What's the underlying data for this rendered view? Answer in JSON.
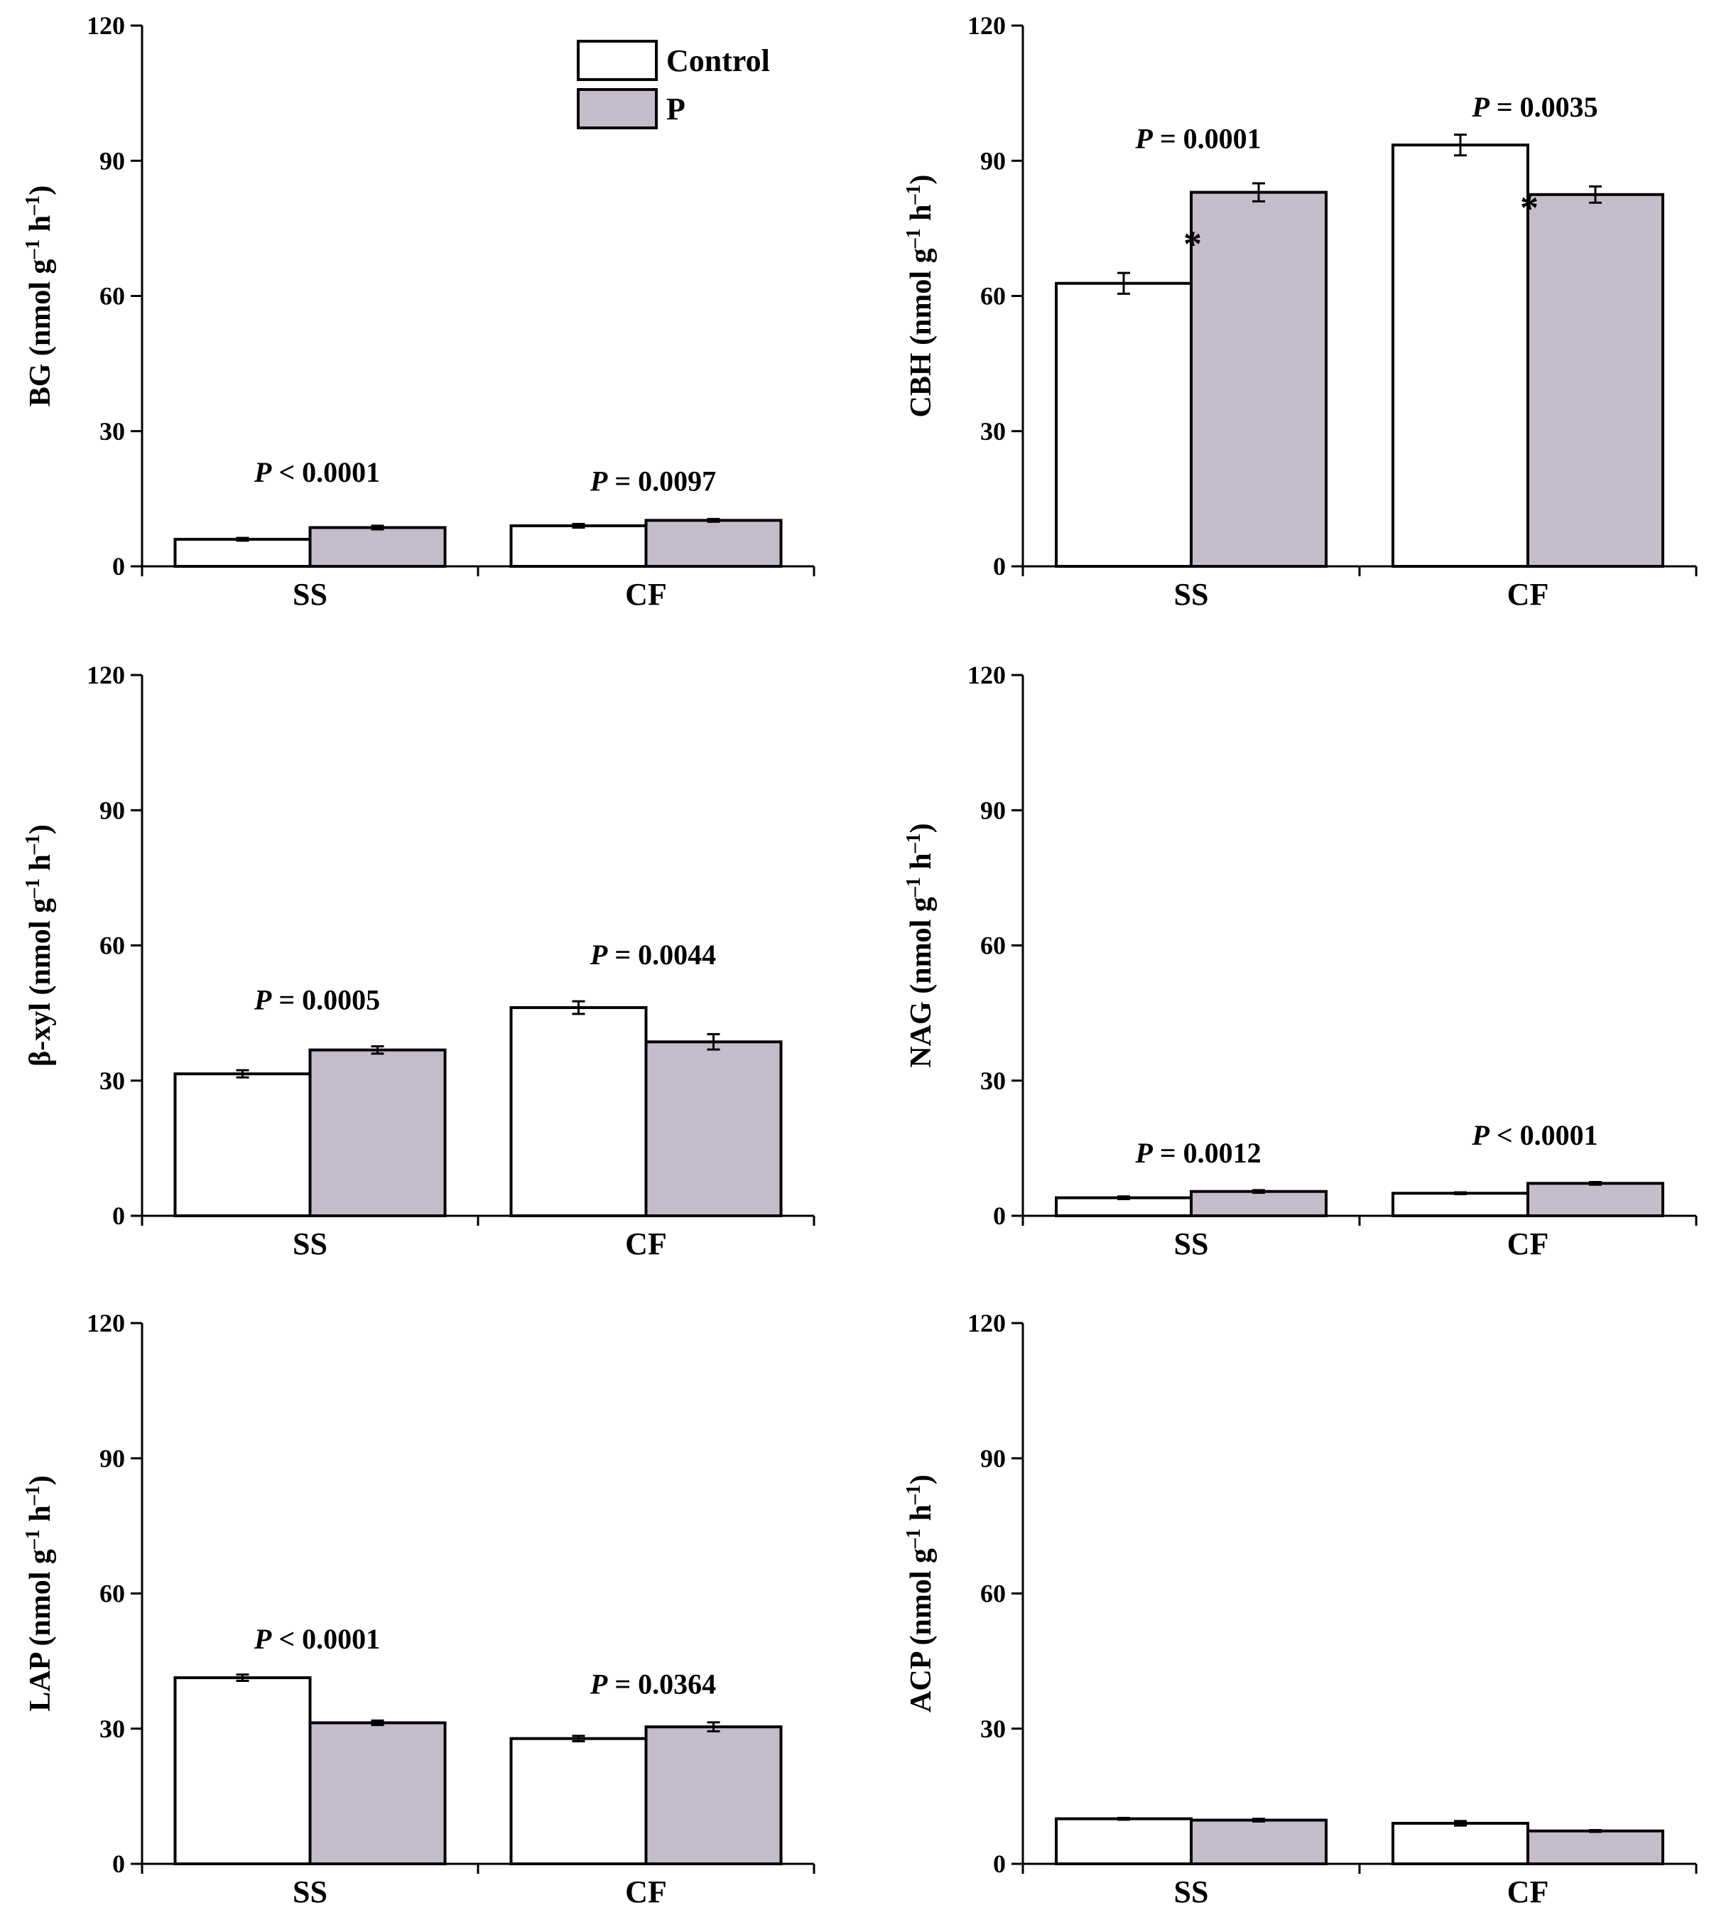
{
  "colors": {
    "control": "#ffffff",
    "p": "#c5bccb",
    "axis": "#000000"
  },
  "legend": {
    "entries": [
      "Control",
      "P"
    ]
  },
  "chart_data": [
    {
      "type": "bar",
      "ylabel": "BG (nmol g⁻¹ h⁻¹)",
      "ylim": [
        0,
        120
      ],
      "yticks": [
        "0",
        "30",
        "60",
        "90",
        "120"
      ],
      "categories": [
        "SS",
        "CF"
      ],
      "series": [
        {
          "name": "Control",
          "values": [
            6.0,
            9.0
          ],
          "errors": [
            0.3,
            0.4
          ]
        },
        {
          "name": "P",
          "values": [
            8.6,
            10.2
          ],
          "errors": [
            0.4,
            0.3
          ]
        }
      ],
      "p_values": [
        {
          "category": "SS",
          "italic": "P",
          "text": " < 0.0001",
          "y": 21
        },
        {
          "category": "CF",
          "italic": "P",
          "text": " = 0.0097",
          "y": 19
        }
      ],
      "stars": []
    },
    {
      "type": "bar",
      "ylabel": "CBH (nmol g⁻¹ h⁻¹)",
      "ylim": [
        0,
        120
      ],
      "yticks": [
        "0",
        "30",
        "60",
        "90",
        "120"
      ],
      "categories": [
        "SS",
        "CF"
      ],
      "series": [
        {
          "name": "Control",
          "values": [
            62.8,
            93.5
          ],
          "errors": [
            2.3,
            2.3
          ]
        },
        {
          "name": "P",
          "values": [
            83.0,
            82.5
          ],
          "errors": [
            2.0,
            1.8
          ]
        }
      ],
      "p_values": [
        {
          "category": "SS",
          "italic": "P",
          "text": " = 0.0001",
          "y": 95
        },
        {
          "category": "CF",
          "italic": "P",
          "text": " = 0.0035",
          "y": 102
        }
      ],
      "stars": [
        {
          "category": "SS",
          "text": "*",
          "y": 72
        },
        {
          "category": "CF",
          "text": "*",
          "y": 80
        }
      ]
    },
    {
      "type": "bar",
      "ylabel": "β-xyl (nmol g⁻¹ h⁻¹)",
      "ylim": [
        0,
        120
      ],
      "yticks": [
        "0",
        "30",
        "60",
        "90",
        "120"
      ],
      "categories": [
        "SS",
        "CF"
      ],
      "series": [
        {
          "name": "Control",
          "values": [
            31.5,
            46.2
          ],
          "errors": [
            0.8,
            1.4
          ]
        },
        {
          "name": "P",
          "values": [
            36.8,
            38.6
          ],
          "errors": [
            0.8,
            1.7
          ]
        }
      ],
      "p_values": [
        {
          "category": "SS",
          "italic": "P",
          "text": " = 0.0005",
          "y": 48
        },
        {
          "category": "CF",
          "italic": "P",
          "text": " = 0.0044",
          "y": 58
        }
      ],
      "stars": []
    },
    {
      "type": "bar",
      "ylabel": "NAG (nmol g⁻¹ h⁻¹)",
      "ylim": [
        0,
        120
      ],
      "yticks": [
        "0",
        "30",
        "60",
        "90",
        "120"
      ],
      "categories": [
        "SS",
        "CF"
      ],
      "series": [
        {
          "name": "Control",
          "values": [
            4.0,
            5.0
          ],
          "errors": [
            0.3,
            0.2
          ]
        },
        {
          "name": "P",
          "values": [
            5.4,
            7.2
          ],
          "errors": [
            0.3,
            0.3
          ]
        }
      ],
      "p_values": [
        {
          "category": "SS",
          "italic": "P",
          "text": " = 0.0012",
          "y": 14
        },
        {
          "category": "CF",
          "italic": "P",
          "text": " < 0.0001",
          "y": 18
        }
      ],
      "stars": []
    },
    {
      "type": "bar",
      "ylabel": "LAP (nmol g⁻¹ h⁻¹)",
      "ylim": [
        0,
        120
      ],
      "yticks": [
        "0",
        "30",
        "60",
        "90",
        "120"
      ],
      "categories": [
        "SS",
        "CF"
      ],
      "series": [
        {
          "name": "Control",
          "values": [
            41.3,
            27.8
          ],
          "errors": [
            0.7,
            0.6
          ]
        },
        {
          "name": "P",
          "values": [
            31.3,
            30.4
          ],
          "errors": [
            0.5,
            1.0
          ]
        }
      ],
      "p_values": [
        {
          "category": "SS",
          "italic": "P",
          "text": " < 0.0001",
          "y": 50
        },
        {
          "category": "CF",
          "italic": "P",
          "text": " = 0.0364",
          "y": 40
        }
      ],
      "stars": []
    },
    {
      "type": "bar",
      "ylabel": "ACP (nmol g⁻¹ h⁻¹)",
      "ylim": [
        0,
        120
      ],
      "yticks": [
        "0",
        "30",
        "60",
        "90",
        "120"
      ],
      "categories": [
        "SS",
        "CF"
      ],
      "series": [
        {
          "name": "Control",
          "values": [
            10.0,
            9.0
          ],
          "errors": [
            0.2,
            0.5
          ]
        },
        {
          "name": "P",
          "values": [
            9.7,
            7.3
          ],
          "errors": [
            0.3,
            0.2
          ]
        }
      ],
      "p_values": [],
      "stars": []
    }
  ]
}
